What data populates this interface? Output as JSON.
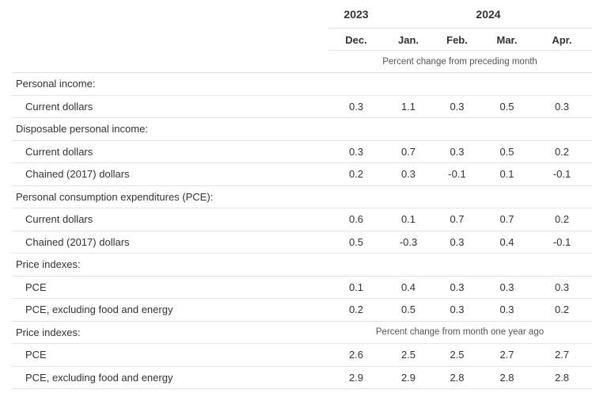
{
  "header": {
    "year_2023": "2023",
    "year_2024": "2024",
    "months": [
      "Dec.",
      "Jan.",
      "Feb.",
      "Mar.",
      "Apr."
    ],
    "note_monthly": "Percent change from preceding month",
    "note_yearly": "Percent change from month one year ago"
  },
  "rows": [
    {
      "kind": "section",
      "label": "Personal income:"
    },
    {
      "kind": "data",
      "label": "Current dollars",
      "values": [
        "0.3",
        "1.1",
        "0.3",
        "0.5",
        "0.3"
      ]
    },
    {
      "kind": "section",
      "label": "Disposable personal income:"
    },
    {
      "kind": "data",
      "label": "Current dollars",
      "values": [
        "0.3",
        "0.7",
        "0.3",
        "0.5",
        "0.2"
      ]
    },
    {
      "kind": "data",
      "label": "Chained (2017) dollars",
      "values": [
        "0.2",
        "0.3",
        "-0.1",
        "0.1",
        "-0.1"
      ]
    },
    {
      "kind": "section",
      "label": "Personal consumption expenditures (PCE):"
    },
    {
      "kind": "data",
      "label": "Current dollars",
      "values": [
        "0.6",
        "0.1",
        "0.7",
        "0.7",
        "0.2"
      ]
    },
    {
      "kind": "data",
      "label": "Chained (2017) dollars",
      "values": [
        "0.5",
        "-0.3",
        "0.3",
        "0.4",
        "-0.1"
      ]
    },
    {
      "kind": "section",
      "label": "Price indexes:"
    },
    {
      "kind": "data",
      "label": "PCE",
      "values": [
        "0.1",
        "0.4",
        "0.3",
        "0.3",
        "0.3"
      ]
    },
    {
      "kind": "data",
      "label": "PCE, excluding food and energy",
      "values": [
        "0.2",
        "0.5",
        "0.3",
        "0.3",
        "0.2"
      ]
    },
    {
      "kind": "section",
      "label": "Price indexes:",
      "note": "yearly"
    },
    {
      "kind": "data",
      "label": "PCE",
      "values": [
        "2.6",
        "2.5",
        "2.5",
        "2.7",
        "2.7"
      ]
    },
    {
      "kind": "data",
      "label": "PCE, excluding food and energy",
      "values": [
        "2.9",
        "2.9",
        "2.8",
        "2.8",
        "2.8"
      ]
    }
  ]
}
